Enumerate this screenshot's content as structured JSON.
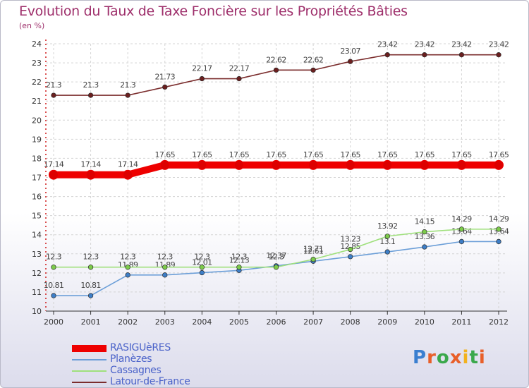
{
  "header": {
    "title": "Evolution du Taux de Taxe Foncière sur les Propriétés Bâties",
    "subtitle": "(en %)"
  },
  "logo": {
    "text": "Proxiti",
    "letters": [
      {
        "ch": "P",
        "color": "#3a7fd0"
      },
      {
        "ch": "r",
        "color": "#e85f29"
      },
      {
        "ch": "o",
        "color": "#3aa84b"
      },
      {
        "ch": "x",
        "color": "#e85f29"
      },
      {
        "ch": "i",
        "color": "#f2b21f"
      },
      {
        "ch": "t",
        "color": "#3aa84b"
      },
      {
        "ch": "i",
        "color": "#e85f29"
      }
    ]
  },
  "chart_data": {
    "type": "line",
    "title": "Evolution du Taux de Taxe Foncière sur les Propriétés Bâties",
    "ylabel": "(en %)",
    "x": [
      2000,
      2001,
      2002,
      2003,
      2004,
      2005,
      2006,
      2007,
      2008,
      2009,
      2010,
      2011,
      2012
    ],
    "ylim": [
      10,
      24
    ],
    "yticks": [
      10,
      11,
      12,
      13,
      14,
      15,
      16,
      17,
      18,
      19,
      20,
      21,
      22,
      23,
      24
    ],
    "grid": true,
    "legend": "bottom-left",
    "series": [
      {
        "name": "RASIGUèRES",
        "color": "#ee0000",
        "marker": "#dd0000",
        "bold": true,
        "values": [
          17.14,
          17.14,
          17.14,
          17.65,
          17.65,
          17.65,
          17.65,
          17.65,
          17.65,
          17.65,
          17.65,
          17.65,
          17.65
        ],
        "labels": [
          "17.14",
          "17.14",
          "17.14",
          "17.65",
          "17.65",
          "17.65",
          "17.65",
          "17.65",
          "17.65",
          "17.65",
          "17.65",
          "17.65",
          "17.65"
        ]
      },
      {
        "name": "Planèzes",
        "color": "#6c9fd8",
        "marker": "#3d7ec7",
        "bold": false,
        "values": [
          10.81,
          10.81,
          11.89,
          11.89,
          12.01,
          12.13,
          12.37,
          12.61,
          12.85,
          13.1,
          13.36,
          13.64,
          13.64
        ],
        "labels": [
          "10.81",
          "10.81",
          "11.89",
          "11.89",
          "12.01",
          "12.13",
          "12.37",
          "12.61",
          "12.85",
          "13.1",
          "13.36",
          "13.64",
          "13.64"
        ]
      },
      {
        "name": "Cassagnes",
        "color": "#9fe07c",
        "marker": "#7ccb4a",
        "bold": false,
        "values": [
          12.3,
          12.3,
          12.3,
          12.3,
          12.3,
          12.3,
          12.3,
          12.71,
          13.23,
          13.92,
          14.15,
          14.29,
          14.29
        ],
        "labels": [
          "12.3",
          "12.3",
          "12.3",
          "12.3",
          "12.3",
          "12.3",
          "12.3",
          "12.71",
          "13.23",
          "13.92",
          "14.15",
          "14.29",
          "14.29"
        ]
      },
      {
        "name": "Latour-de-France",
        "color": "#7b2d2d",
        "marker": "#6b1f1f",
        "bold": false,
        "values": [
          21.3,
          21.3,
          21.3,
          21.73,
          22.17,
          22.17,
          22.62,
          22.62,
          23.07,
          23.42,
          23.42,
          23.42,
          23.42
        ],
        "labels": [
          "21.3",
          "21.3",
          "21.3",
          "21.73",
          "22.17",
          "22.17",
          "22.62",
          "22.62",
          "23.07",
          "23.42",
          "23.42",
          "23.42",
          "23.42"
        ]
      }
    ]
  }
}
